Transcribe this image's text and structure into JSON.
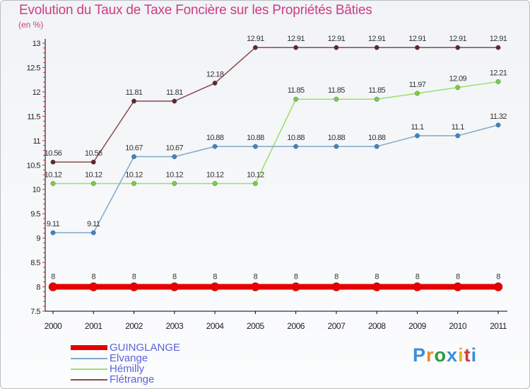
{
  "title": "Evolution du Taux de Taxe Foncière sur les Propriétés Bâties",
  "unit_label": "(en %)",
  "brand": {
    "text": "Proxiti",
    "letters": [
      "P",
      "r",
      "o",
      "x",
      "i",
      "t",
      "i"
    ],
    "colors": [
      "#3a8fd8",
      "#e88a2a",
      "#2f9a3a",
      "#3a8fd8",
      "#e8b021",
      "#d23b3b",
      "#3a8fd8"
    ]
  },
  "chart_data": {
    "type": "line",
    "title": "Evolution du Taux de Taxe Foncière sur les Propriétés Bâties",
    "xlabel": "",
    "ylabel": "(en %)",
    "ylim": [
      7.5,
      13
    ],
    "y_ticks": [
      "7.5",
      "8",
      "8.5",
      "9",
      "9.5",
      "10",
      "10.5",
      "11",
      "11.5",
      "12",
      "12.5",
      "13"
    ],
    "x": [
      "2000",
      "2001",
      "2002",
      "2003",
      "2004",
      "2005",
      "2006",
      "2007",
      "2008",
      "2009",
      "2010",
      "2011"
    ],
    "grid": false,
    "legend_position": "bottom-left",
    "series": [
      {
        "name": "GUINGLANGE",
        "color": "#e60000",
        "dot_color": "#e60000",
        "values": [
          8,
          8,
          8,
          8,
          8,
          8,
          8,
          8,
          8,
          8,
          8,
          8
        ],
        "labels": [
          "8",
          "8",
          "8",
          "8",
          "8",
          "8",
          "8",
          "8",
          "8",
          "8",
          "8",
          "8"
        ]
      },
      {
        "name": "Elvange",
        "color": "#80a8c8",
        "dot_color": "#3f84c6",
        "values": [
          9.11,
          9.11,
          10.67,
          10.67,
          10.88,
          10.88,
          10.88,
          10.88,
          10.88,
          11.1,
          11.1,
          11.32
        ],
        "labels": [
          "9.11",
          "9.11",
          "10.67",
          "10.67",
          "10.88",
          "10.88",
          "10.88",
          "10.88",
          "10.88",
          "11.1",
          "11.1",
          "11.32"
        ]
      },
      {
        "name": "Hémilly",
        "color": "#9adf6c",
        "dot_color": "#7ccc44",
        "values": [
          10.12,
          10.12,
          10.12,
          10.12,
          10.12,
          10.12,
          11.85,
          11.85,
          11.85,
          11.97,
          12.09,
          12.21
        ],
        "labels": [
          "10.12",
          "10.12",
          "10.12",
          "10.12",
          "10.12",
          "10.12",
          "11.85",
          "11.85",
          "11.85",
          "11.97",
          "12.09",
          "12.21"
        ]
      },
      {
        "name": "Flétrange",
        "color": "#8a4848",
        "dot_color": "#6a2424",
        "values": [
          10.56,
          10.56,
          11.81,
          11.81,
          12.18,
          12.91,
          12.91,
          12.91,
          12.91,
          12.91,
          12.91,
          12.91
        ],
        "labels": [
          "10.56",
          "10.56",
          "11.81",
          "11.81",
          "12.18",
          "12.91",
          "12.91",
          "12.91",
          "12.91",
          "12.91",
          "12.91",
          "12.91"
        ]
      }
    ]
  }
}
